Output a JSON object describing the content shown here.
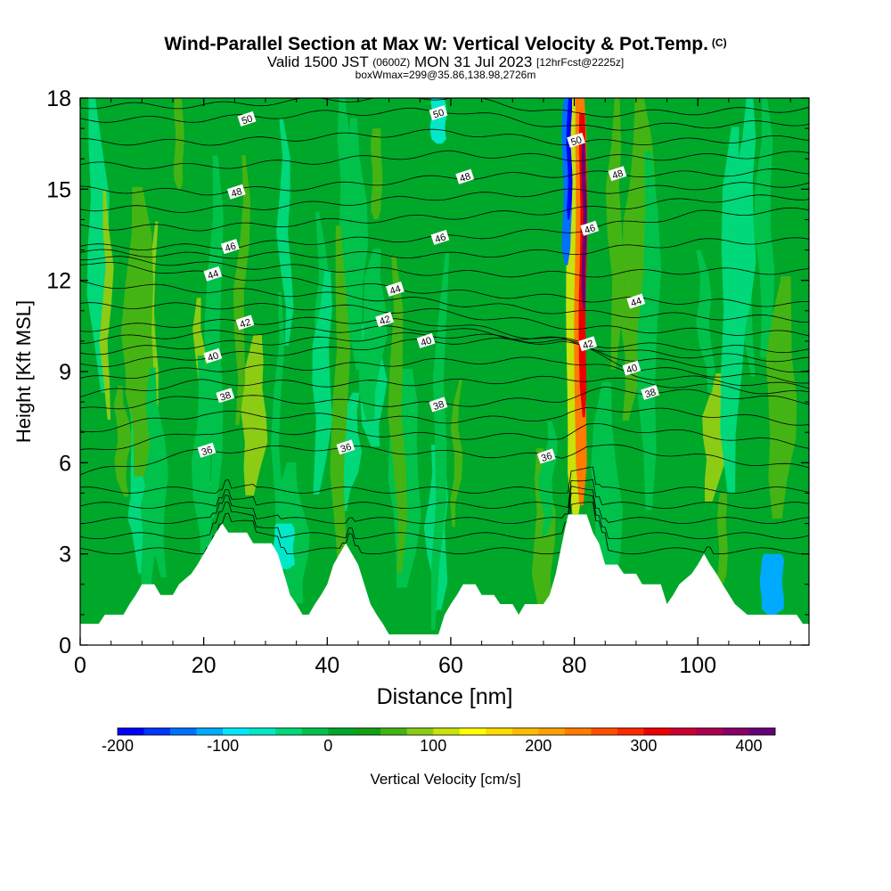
{
  "chart_data": {
    "type": "heatmap",
    "title": "Wind-Parallel Section at Max W: Vertical Velocity & Pot.Temp.",
    "title_mark": "(C)",
    "subtitle": {
      "valid_prefix": "Valid 1500 JST",
      "utc_tag": "(0600Z)",
      "date": "MON 31 Jul 2023",
      "forecast": "[12hrFcst@2225z]"
    },
    "box_info": "boxWmax=299@35.86,138.98,2726m",
    "xlabel": "Distance [nm]",
    "ylabel": "Height [Kft MSL]",
    "xlim": [
      0,
      118
    ],
    "ylim": [
      0,
      18
    ],
    "x_ticks": [
      0,
      20,
      40,
      60,
      80,
      100
    ],
    "y_ticks": [
      0,
      3,
      6,
      9,
      12,
      15,
      18
    ],
    "colorbar": {
      "label": "Vertical Velocity [cm/s]",
      "range": [
        -200,
        425
      ],
      "tick_values": [
        -200,
        -100,
        0,
        100,
        200,
        300,
        400
      ],
      "tick_labels": [
        "-200",
        "-100",
        "0",
        "100",
        "200",
        "300",
        "400"
      ],
      "colors": [
        "#0000ff",
        "#0036ff",
        "#0070ff",
        "#00aaff",
        "#00e8ff",
        "#00e8c8",
        "#00d87a",
        "#00c24a",
        "#00a82a",
        "#12a012",
        "#44b414",
        "#8ccc14",
        "#c8e20a",
        "#ffff00",
        "#ffdc00",
        "#ffbe00",
        "#ffa000",
        "#ff7c00",
        "#ff5000",
        "#ff2800",
        "#ee0000",
        "#cc0030",
        "#aa0050",
        "#880066",
        "#660077"
      ]
    },
    "background_levels": [
      {
        "name": "weak-updraft",
        "value": 15,
        "color": "#00a82a"
      },
      {
        "name": "weak-downdraft",
        "value": -15,
        "color": "#00c24a"
      },
      {
        "name": "moderate-updraft",
        "value": 50,
        "color": "#44b414"
      },
      {
        "name": "moderate-downdraft",
        "value": -50,
        "color": "#00d87a"
      },
      {
        "name": "stronger-updraft",
        "value": 80,
        "color": "#8ccc14"
      }
    ],
    "terrain": [
      [
        0,
        0.7
      ],
      [
        3,
        0.7
      ],
      [
        4,
        1.0
      ],
      [
        7,
        1.0
      ],
      [
        8,
        1.35
      ],
      [
        9,
        1.65
      ],
      [
        10,
        2.0
      ],
      [
        12,
        2.0
      ],
      [
        13,
        1.65
      ],
      [
        15,
        1.65
      ],
      [
        16,
        2.0
      ],
      [
        18,
        2.35
      ],
      [
        19,
        2.65
      ],
      [
        20,
        3.0
      ],
      [
        21,
        3.35
      ],
      [
        22,
        3.7
      ],
      [
        23,
        4.0
      ],
      [
        24,
        3.7
      ],
      [
        27,
        3.7
      ],
      [
        28,
        3.35
      ],
      [
        31,
        3.35
      ],
      [
        32,
        3.0
      ],
      [
        33,
        2.35
      ],
      [
        34,
        1.65
      ],
      [
        35,
        1.35
      ],
      [
        36,
        1.0
      ],
      [
        37,
        1.0
      ],
      [
        38,
        1.35
      ],
      [
        39,
        1.65
      ],
      [
        40,
        2.0
      ],
      [
        41,
        2.65
      ],
      [
        42,
        3.0
      ],
      [
        43,
        3.35
      ],
      [
        44,
        3.0
      ],
      [
        45,
        2.65
      ],
      [
        46,
        2.0
      ],
      [
        47,
        1.35
      ],
      [
        48,
        1.0
      ],
      [
        49,
        0.7
      ],
      [
        50,
        0.35
      ],
      [
        58,
        0.35
      ],
      [
        59,
        1.0
      ],
      [
        60,
        1.35
      ],
      [
        61,
        1.65
      ],
      [
        62,
        2.0
      ],
      [
        64,
        2.0
      ],
      [
        65,
        1.65
      ],
      [
        67,
        1.65
      ],
      [
        68,
        1.35
      ],
      [
        70,
        1.35
      ],
      [
        71,
        1.0
      ],
      [
        72,
        1.35
      ],
      [
        75,
        1.35
      ],
      [
        76,
        1.65
      ],
      [
        77,
        2.35
      ],
      [
        78,
        3.35
      ],
      [
        79,
        4.3
      ],
      [
        82,
        4.3
      ],
      [
        83,
        3.7
      ],
      [
        84,
        3.35
      ],
      [
        85,
        2.65
      ],
      [
        87,
        2.65
      ],
      [
        88,
        2.35
      ],
      [
        90,
        2.35
      ],
      [
        91,
        2.0
      ],
      [
        94,
        2.0
      ],
      [
        95,
        1.35
      ],
      [
        96,
        1.65
      ],
      [
        97,
        2.0
      ],
      [
        99,
        2.35
      ],
      [
        100,
        2.65
      ],
      [
        101,
        3.0
      ],
      [
        102,
        2.65
      ],
      [
        103,
        2.35
      ],
      [
        104,
        2.0
      ],
      [
        106,
        1.35
      ],
      [
        108,
        1.0
      ],
      [
        116,
        1.0
      ],
      [
        117,
        0.7
      ],
      [
        118,
        0.7
      ]
    ],
    "plumes": [
      {
        "x": 80.2,
        "y0": 4.3,
        "y1": 18,
        "w_cm_s": 120,
        "half_width_nm": 1.4
      },
      {
        "x": 81.0,
        "y0": 4.6,
        "y1": 18,
        "w_cm_s": 230,
        "half_width_nm": 0.9
      },
      {
        "x": 81.4,
        "y0": 7.5,
        "y1": 17.5,
        "w_cm_s": 310,
        "half_width_nm": 0.55
      },
      {
        "x": 81.6,
        "y0": 11.0,
        "y1": 16.5,
        "w_cm_s": 400,
        "half_width_nm": 0.3
      },
      {
        "x": 78.8,
        "y0": 12.5,
        "y1": 18,
        "w_cm_s": -130,
        "half_width_nm": 0.7
      },
      {
        "x": 79.2,
        "y0": 14.0,
        "y1": 18,
        "w_cm_s": -200,
        "half_width_nm": 0.35
      },
      {
        "x": 112,
        "y0": 1.0,
        "y1": 3.0,
        "w_cm_s": -110,
        "half_width_nm": 1.8
      },
      {
        "x": 33,
        "y0": 2.5,
        "y1": 4.0,
        "w_cm_s": -60,
        "half_width_nm": 1.6
      },
      {
        "x": 58,
        "y0": 16.5,
        "y1": 18,
        "w_cm_s": -70,
        "half_width_nm": 1.2
      },
      {
        "x": 16,
        "y0": 15.0,
        "y1": 18,
        "w_cm_s": 60,
        "half_width_nm": 0.7
      },
      {
        "x": 48,
        "y0": 14.0,
        "y1": 17.0,
        "w_cm_s": 60,
        "half_width_nm": 0.8
      },
      {
        "x": 104,
        "y0": 2.0,
        "y1": 5.0,
        "w_cm_s": 70,
        "half_width_nm": 0.7
      }
    ],
    "isentropes": [
      {
        "theta": 36,
        "points": [
          [
            0,
            5.6
          ],
          [
            20,
            6.4
          ],
          [
            40,
            6.5
          ],
          [
            60,
            6.3
          ],
          [
            78,
            6.2
          ],
          [
            82,
            6.6
          ],
          [
            100,
            6.2
          ],
          [
            118,
            5.8
          ]
        ]
      },
      {
        "theta": 38,
        "points": [
          [
            0,
            7.7
          ],
          [
            20,
            8.2
          ],
          [
            40,
            8.0
          ],
          [
            58,
            7.9
          ],
          [
            78,
            8.1
          ],
          [
            85,
            8.4
          ],
          [
            100,
            8.3
          ],
          [
            118,
            8.0
          ]
        ]
      },
      {
        "theta": 40,
        "points": [
          [
            0,
            9.2
          ],
          [
            20,
            9.5
          ],
          [
            40,
            9.7
          ],
          [
            56,
            10.0
          ],
          [
            78,
            10.0
          ],
          [
            90,
            9.1
          ],
          [
            118,
            8.7
          ]
        ]
      },
      {
        "theta": 42,
        "points": [
          [
            0,
            10.4
          ],
          [
            20,
            10.6
          ],
          [
            40,
            10.7
          ],
          [
            58,
            10.6
          ],
          [
            82,
            9.9
          ],
          [
            100,
            9.8
          ],
          [
            118,
            9.7
          ]
        ]
      },
      {
        "theta": 44,
        "points": [
          [
            0,
            12.6
          ],
          [
            20,
            12.2
          ],
          [
            40,
            11.9
          ],
          [
            60,
            11.6
          ],
          [
            80,
            11.4
          ],
          [
            100,
            11.3
          ],
          [
            118,
            11.2
          ]
        ]
      },
      {
        "theta": 46,
        "points": [
          [
            0,
            13.1
          ],
          [
            20,
            13.1
          ],
          [
            40,
            13.3
          ],
          [
            60,
            13.4
          ],
          [
            82,
            13.7
          ],
          [
            100,
            14.2
          ],
          [
            118,
            14.3
          ]
        ]
      },
      {
        "theta": 48,
        "points": [
          [
            0,
            15.0
          ],
          [
            20,
            14.9
          ],
          [
            40,
            15.1
          ],
          [
            60,
            15.4
          ],
          [
            80,
            15.5
          ],
          [
            100,
            15.5
          ],
          [
            118,
            15.6
          ]
        ]
      },
      {
        "theta": 50,
        "points": [
          [
            0,
            17.3
          ],
          [
            20,
            17.3
          ],
          [
            40,
            17.5
          ],
          [
            60,
            17.6
          ],
          [
            80,
            17.0
          ],
          [
            100,
            17.1
          ],
          [
            118,
            17.2
          ]
        ]
      }
    ],
    "contour_labels": [
      {
        "text": "50",
        "x": 27,
        "y": 17.3
      },
      {
        "text": "50",
        "x": 58,
        "y": 17.5
      },
      {
        "text": "50",
        "x": 80.3,
        "y": 16.6
      },
      {
        "text": "48",
        "x": 25.3,
        "y": 14.9
      },
      {
        "text": "48",
        "x": 62.3,
        "y": 15.4
      },
      {
        "text": "48",
        "x": 87,
        "y": 15.5
      },
      {
        "text": "46",
        "x": 58.3,
        "y": 13.4
      },
      {
        "text": "46",
        "x": 24.3,
        "y": 13.1
      },
      {
        "text": "46",
        "x": 82.5,
        "y": 13.7
      },
      {
        "text": "44",
        "x": 21.5,
        "y": 12.2
      },
      {
        "text": "44",
        "x": 51,
        "y": 11.7
      },
      {
        "text": "44",
        "x": 90,
        "y": 11.3
      },
      {
        "text": "42",
        "x": 26.7,
        "y": 10.6
      },
      {
        "text": "42",
        "x": 49.3,
        "y": 10.7
      },
      {
        "text": "42",
        "x": 82.2,
        "y": 9.9
      },
      {
        "text": "40",
        "x": 21.5,
        "y": 9.5
      },
      {
        "text": "40",
        "x": 56,
        "y": 10.0
      },
      {
        "text": "40",
        "x": 89.3,
        "y": 9.1
      },
      {
        "text": "38",
        "x": 23.5,
        "y": 8.2
      },
      {
        "text": "38",
        "x": 58,
        "y": 7.9
      },
      {
        "text": "38",
        "x": 92.3,
        "y": 8.3
      },
      {
        "text": "36",
        "x": 20.5,
        "y": 6.4
      },
      {
        "text": "36",
        "x": 43,
        "y": 6.5
      },
      {
        "text": "36",
        "x": 75.5,
        "y": 6.2
      }
    ]
  }
}
